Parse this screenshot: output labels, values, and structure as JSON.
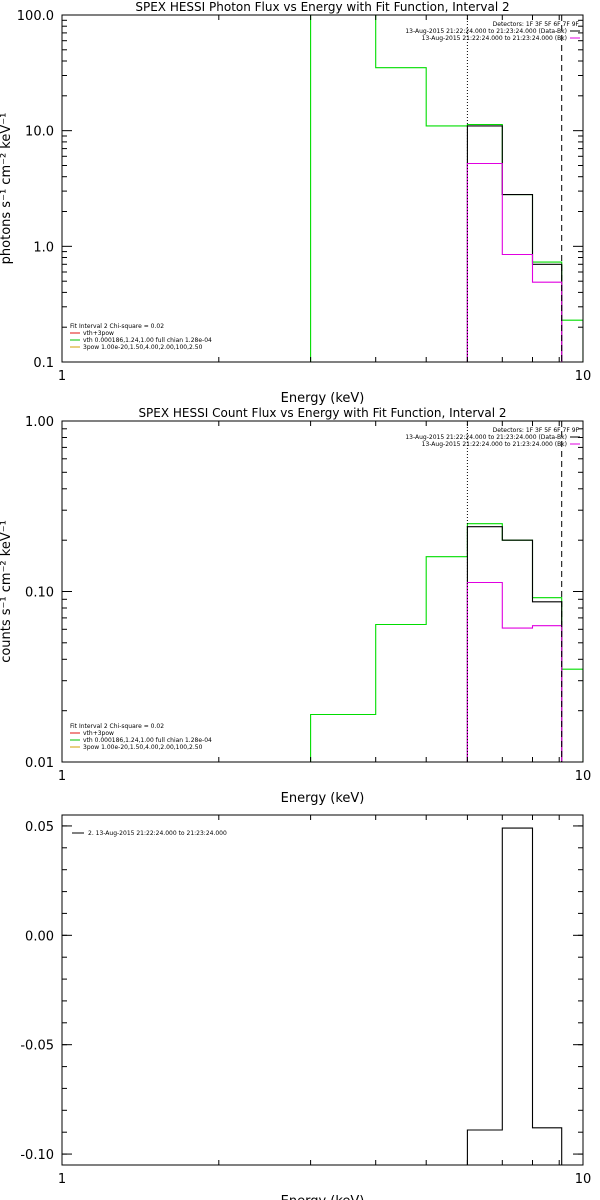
{
  "chart_data": [
    {
      "type": "line",
      "title": "SPEX HESSI Photon Flux vs Energy with Fit Function, Interval 2",
      "xlabel": "Energy (keV)",
      "ylabel": "photons s⁻¹ cm⁻² keV⁻¹",
      "xscale": "log",
      "yscale": "log",
      "xlim": [
        1,
        10
      ],
      "ylim": [
        0.1,
        100
      ],
      "xticks": [
        {
          "v": 1,
          "label": "1"
        },
        {
          "v": 10,
          "label": "10"
        }
      ],
      "yticks": [
        {
          "v": 0.1,
          "label": "0.1"
        },
        {
          "v": 1,
          "label": "1.0"
        },
        {
          "v": 10,
          "label": "10.0"
        },
        {
          "v": 100,
          "label": "100.0"
        }
      ],
      "vlines": [
        {
          "x": 6.0,
          "style": "dotted"
        },
        {
          "x": 9.1,
          "style": "dashed"
        }
      ],
      "legend_top": [
        {
          "text": "Detectors: 1F 3F 5F 6F 7F 9F",
          "color": ""
        },
        {
          "text": "13-Aug-2015 21:22:24.000 to 21:23:24.000 (Data-Bk)",
          "color": "#000000"
        },
        {
          "text": "13-Aug-2015 21:22:24.000 to 21:23:24.000 (Bk)",
          "color": "#e000e0"
        }
      ],
      "legend_bottom": [
        {
          "text": "Fit Interval 2   Chi-square = 0.02",
          "color": ""
        },
        {
          "text": "vth+3pow",
          "color": "#e01010"
        },
        {
          "text": "vth 0.000186,1.24,1.00  full chian 1.28e-04",
          "color": "#00c000"
        },
        {
          "text": "3pow 1.00e-20,1.50,4.00,2.00,100,2.50",
          "color": "#d0a000"
        }
      ],
      "series": [
        {
          "color": "#00dd00",
          "edges": [
            3.0,
            4.0,
            5.0,
            6.0,
            7.0,
            8.0,
            9.1,
            10.0
          ],
          "values": [
            100,
            35,
            11,
            11.3,
            2.8,
            0.73,
            0.23
          ]
        },
        {
          "color": "#000000",
          "edges": [
            6.0,
            7.0,
            8.0,
            9.1
          ],
          "values": [
            11,
            2.8,
            0.7
          ]
        },
        {
          "color": "#e000e0",
          "edges": [
            6.0,
            7.0,
            8.0,
            9.1
          ],
          "values": [
            5.2,
            0.85,
            0.49
          ]
        }
      ]
    },
    {
      "type": "line",
      "title": "SPEX HESSI Count Flux vs Energy with Fit Function, Interval 2",
      "xlabel": "Energy (keV)",
      "ylabel": "counts s⁻¹ cm⁻² keV⁻¹",
      "xscale": "log",
      "yscale": "log",
      "xlim": [
        1,
        10
      ],
      "ylim": [
        0.01,
        1
      ],
      "xticks": [
        {
          "v": 1,
          "label": "1"
        },
        {
          "v": 10,
          "label": "10"
        }
      ],
      "yticks": [
        {
          "v": 0.01,
          "label": "0.01"
        },
        {
          "v": 0.1,
          "label": "0.10"
        },
        {
          "v": 1,
          "label": "1.00"
        }
      ],
      "vlines": [
        {
          "x": 6.0,
          "style": "dotted"
        },
        {
          "x": 9.1,
          "style": "dashed"
        }
      ],
      "legend_top": [
        {
          "text": "Detectors: 1F 3F 5F 6F 7F 9F",
          "color": ""
        },
        {
          "text": "13-Aug-2015 21:22:24.000 to 21:23:24.000 (Data-Bk)",
          "color": "#000000"
        },
        {
          "text": "13-Aug-2015 21:22:24.000 to 21:23:24.000 (Bk)",
          "color": "#e000e0"
        }
      ],
      "legend_bottom": [
        {
          "text": "Fit Interval 2   Chi-square = 0.02",
          "color": ""
        },
        {
          "text": "vth+3pow",
          "color": "#e01010"
        },
        {
          "text": "vth 0.000186,1.24,1.00  full chian 1.28e-04",
          "color": "#00c000"
        },
        {
          "text": "3pow 1.00e-20,1.50,4.00,2.00,100,2.50",
          "color": "#d0a000"
        }
      ],
      "series": [
        {
          "color": "#00dd00",
          "edges": [
            3.0,
            4.0,
            5.0,
            6.0,
            7.0,
            8.0,
            9.1,
            10.0
          ],
          "values": [
            0.019,
            0.064,
            0.16,
            0.25,
            0.2,
            0.092,
            0.035
          ]
        },
        {
          "color": "#000000",
          "edges": [
            6.0,
            7.0,
            8.0,
            9.1
          ],
          "values": [
            0.24,
            0.2,
            0.087
          ]
        },
        {
          "color": "#e000e0",
          "edges": [
            6.0,
            7.0,
            8.0,
            9.1
          ],
          "values": [
            0.113,
            0.061,
            0.063
          ]
        }
      ]
    },
    {
      "type": "line",
      "title": "",
      "xlabel": "Energy (keV)",
      "ylabel": "",
      "xscale": "log",
      "yscale": "linear",
      "xlim": [
        1,
        10
      ],
      "ylim": [
        -0.105,
        0.055
      ],
      "xticks": [
        {
          "v": 1,
          "label": "1"
        },
        {
          "v": 10,
          "label": "10"
        }
      ],
      "yticks": [
        {
          "v": 0.05,
          "label": "0.05"
        },
        {
          "v": 0,
          "label": "0.00"
        },
        {
          "v": -0.05,
          "label": "-0.05"
        },
        {
          "v": -0.1,
          "label": "-0.10"
        }
      ],
      "vlines": [],
      "legend_top": [
        {
          "text": "2. 13-Aug-2015 21:22:24.000 to 21:23:24.000",
          "color": "#000000"
        }
      ],
      "legend_bottom": [],
      "series": [
        {
          "color": "#000000",
          "edges": [
            6.0,
            7.0,
            8.0,
            9.1
          ],
          "values": [
            -0.089,
            0.049,
            -0.088
          ]
        }
      ]
    }
  ]
}
